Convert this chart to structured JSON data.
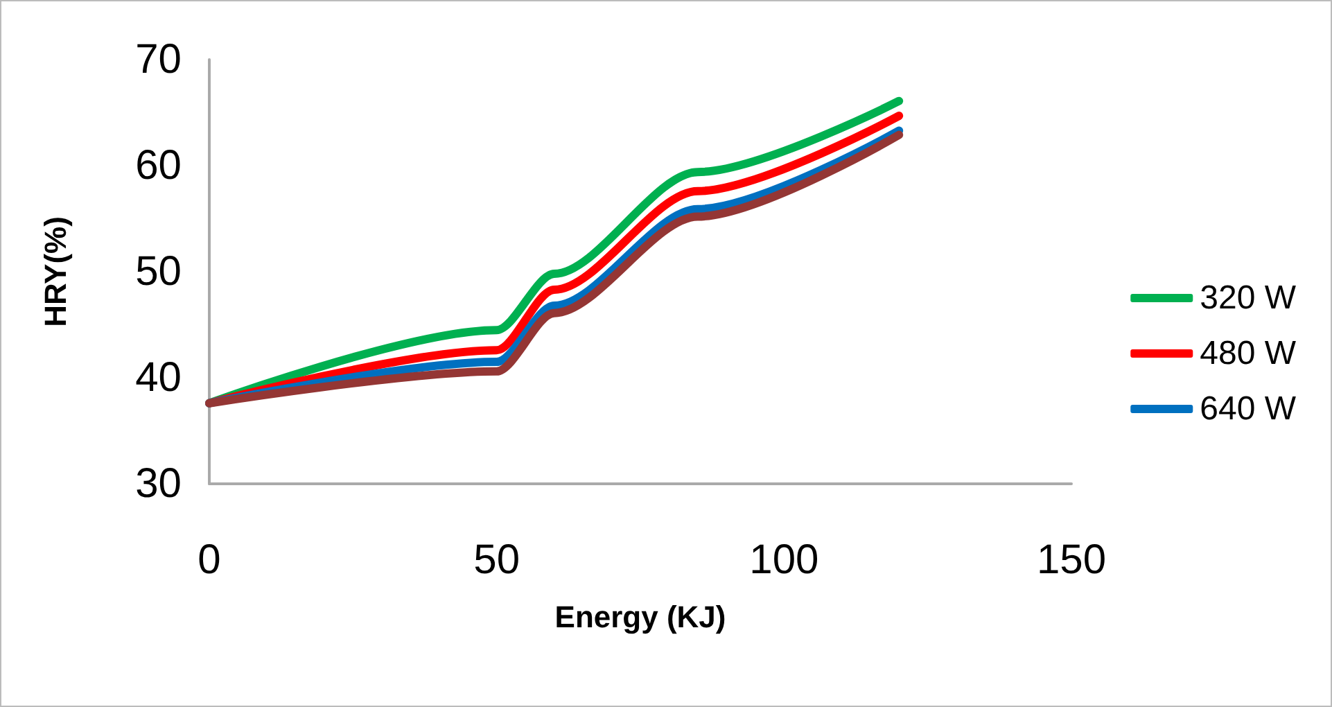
{
  "chart_data": {
    "type": "line",
    "xlabel": "Energy (KJ)",
    "ylabel": "HRY(%)",
    "x": [
      0,
      50,
      60,
      85,
      120
    ],
    "series": [
      {
        "name": "320 W",
        "color": "#00b050",
        "values": [
          37.6,
          44.5,
          49.8,
          59.4,
          66.1
        ]
      },
      {
        "name": "480 W",
        "color": "#ff0000",
        "values": [
          37.6,
          42.6,
          48.3,
          57.6,
          64.7
        ]
      },
      {
        "name": "640 W",
        "color": "#0070c0",
        "values": [
          37.6,
          41.5,
          46.8,
          55.9,
          63.3
        ]
      },
      {
        "color": "#943634",
        "values": [
          37.6,
          40.6,
          46.1,
          55.2,
          62.9
        ]
      }
    ],
    "xlim": [
      0,
      150
    ],
    "xticks": [
      0,
      50,
      100,
      150
    ],
    "ylim": [
      30,
      70
    ],
    "yticks": [
      30,
      40,
      50,
      60,
      70
    ],
    "grid": false,
    "legend": "right",
    "marker": "none",
    "line_style": "solid"
  }
}
